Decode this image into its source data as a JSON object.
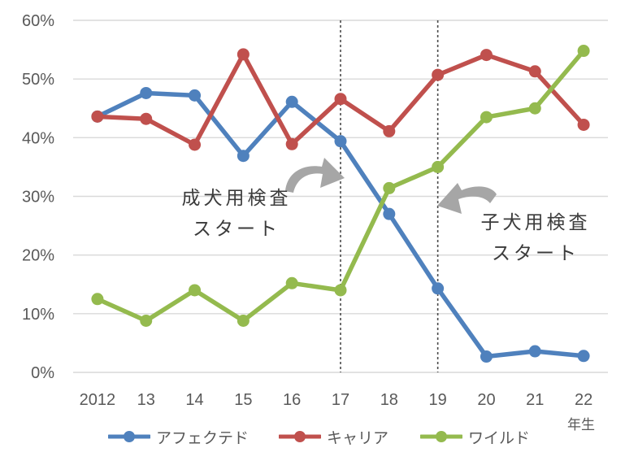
{
  "colors": {
    "blue": "#4F81BD",
    "red": "#C0504D",
    "green": "#94BA4E",
    "grid": "#D9D9D9",
    "axis_text": "#595959",
    "annotation_text": "#3B3B3B",
    "dashed_line": "#4A4A4A",
    "arrow": "#A6A6A6",
    "background": "#FFFFFF"
  },
  "chart_data": {
    "type": "line",
    "title": "",
    "categories": [
      "2012",
      "13",
      "14",
      "15",
      "16",
      "17",
      "18",
      "19",
      "20",
      "21",
      "22"
    ],
    "x_axis_suffix_label": "年生",
    "series": [
      {
        "id": "affected",
        "name": "アフェクテド",
        "color_key": "blue",
        "values": [
          43.6,
          47.6,
          47.2,
          36.9,
          46.1,
          39.4,
          27.0,
          14.3,
          2.7,
          3.6,
          2.8
        ]
      },
      {
        "id": "carrier",
        "name": "キャリア",
        "color_key": "red",
        "values": [
          43.6,
          43.2,
          38.8,
          54.2,
          38.9,
          46.6,
          41.1,
          50.7,
          54.1,
          51.3,
          42.2
        ]
      },
      {
        "id": "wild",
        "name": "ワイルド",
        "color_key": "green",
        "values": [
          12.5,
          8.8,
          14.0,
          8.8,
          15.2,
          14.0,
          31.4,
          35.0,
          43.5,
          45.0,
          54.8
        ]
      }
    ],
    "ylim": [
      0,
      60
    ],
    "y_tick_step": 10,
    "y_tick_format": "{v}%",
    "grid": true,
    "legend_position": "bottom",
    "reference_lines": [
      {
        "category_index": 5,
        "category": "17"
      },
      {
        "category_index": 7,
        "category": "19"
      }
    ],
    "annotations": [
      {
        "lines": [
          "成犬用検査",
          "スタート"
        ],
        "arrow_direction": "right",
        "points_to_category": "17"
      },
      {
        "lines": [
          "子犬用検査",
          "スタート"
        ],
        "arrow_direction": "left",
        "points_to_category": "19"
      }
    ]
  }
}
